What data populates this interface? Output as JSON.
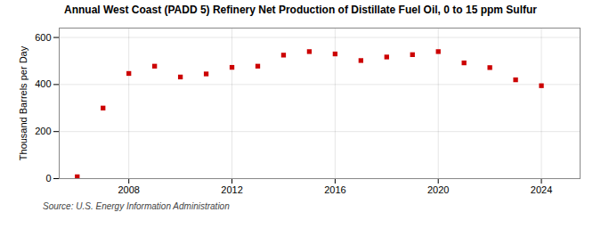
{
  "chart_data": {
    "type": "scatter",
    "title": "Annual West Coast (PADD 5) Refinery Net Production of Distillate Fuel Oil, 0 to 15 ppm Sulfur",
    "ylabel": "Thousand Barrels per Day",
    "source": "Source: U.S. Energy Information Administration",
    "x": [
      2006,
      2007,
      2008,
      2009,
      2010,
      2011,
      2012,
      2013,
      2014,
      2015,
      2016,
      2017,
      2018,
      2019,
      2020,
      2021,
      2022,
      2023,
      2024
    ],
    "values": [
      8,
      300,
      447,
      478,
      432,
      445,
      473,
      478,
      525,
      540,
      530,
      502,
      517,
      527,
      540,
      492,
      472,
      420,
      395
    ],
    "color": "#cc0000",
    "marker": "square",
    "grid": true,
    "xlim": [
      2005.3,
      2025.5
    ],
    "xticks": [
      2008,
      2012,
      2016,
      2020,
      2024
    ],
    "ylim": [
      0,
      640
    ],
    "yticks": [
      0,
      200,
      400,
      600
    ]
  }
}
